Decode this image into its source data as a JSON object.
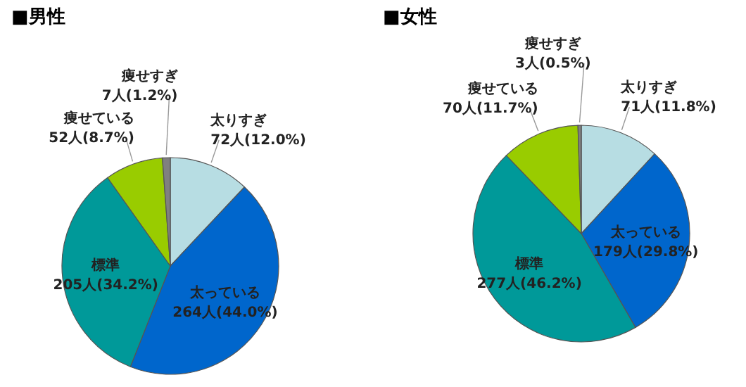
{
  "chart_data": [
    {
      "type": "pie",
      "title": "■男性",
      "categories": [
        "太りすぎ",
        "太っている",
        "標準",
        "痩せている",
        "痩せすぎ"
      ],
      "values": [
        72,
        264,
        205,
        52,
        7
      ],
      "value_labels": [
        "72人(12.0%)",
        "264人(44.0%)",
        "205人(34.2%)",
        "52人(8.7%)",
        "7人(1.2%)"
      ],
      "colors": [
        "#b7dde3",
        "#0066cc",
        "#009999",
        "#99cc00",
        "#808080"
      ]
    },
    {
      "type": "pie",
      "title": "■女性",
      "categories": [
        "太りすぎ",
        "太っている",
        "標準",
        "痩せている",
        "痩せすぎ"
      ],
      "values": [
        71,
        179,
        277,
        70,
        3
      ],
      "value_labels": [
        "71人(11.8%)",
        "179人(29.8%)",
        "277人(46.2%)",
        "70人(11.7%)",
        "3人(0.5%)"
      ],
      "colors": [
        "#b7dde3",
        "#0066cc",
        "#009999",
        "#99cc00",
        "#808080"
      ]
    }
  ]
}
